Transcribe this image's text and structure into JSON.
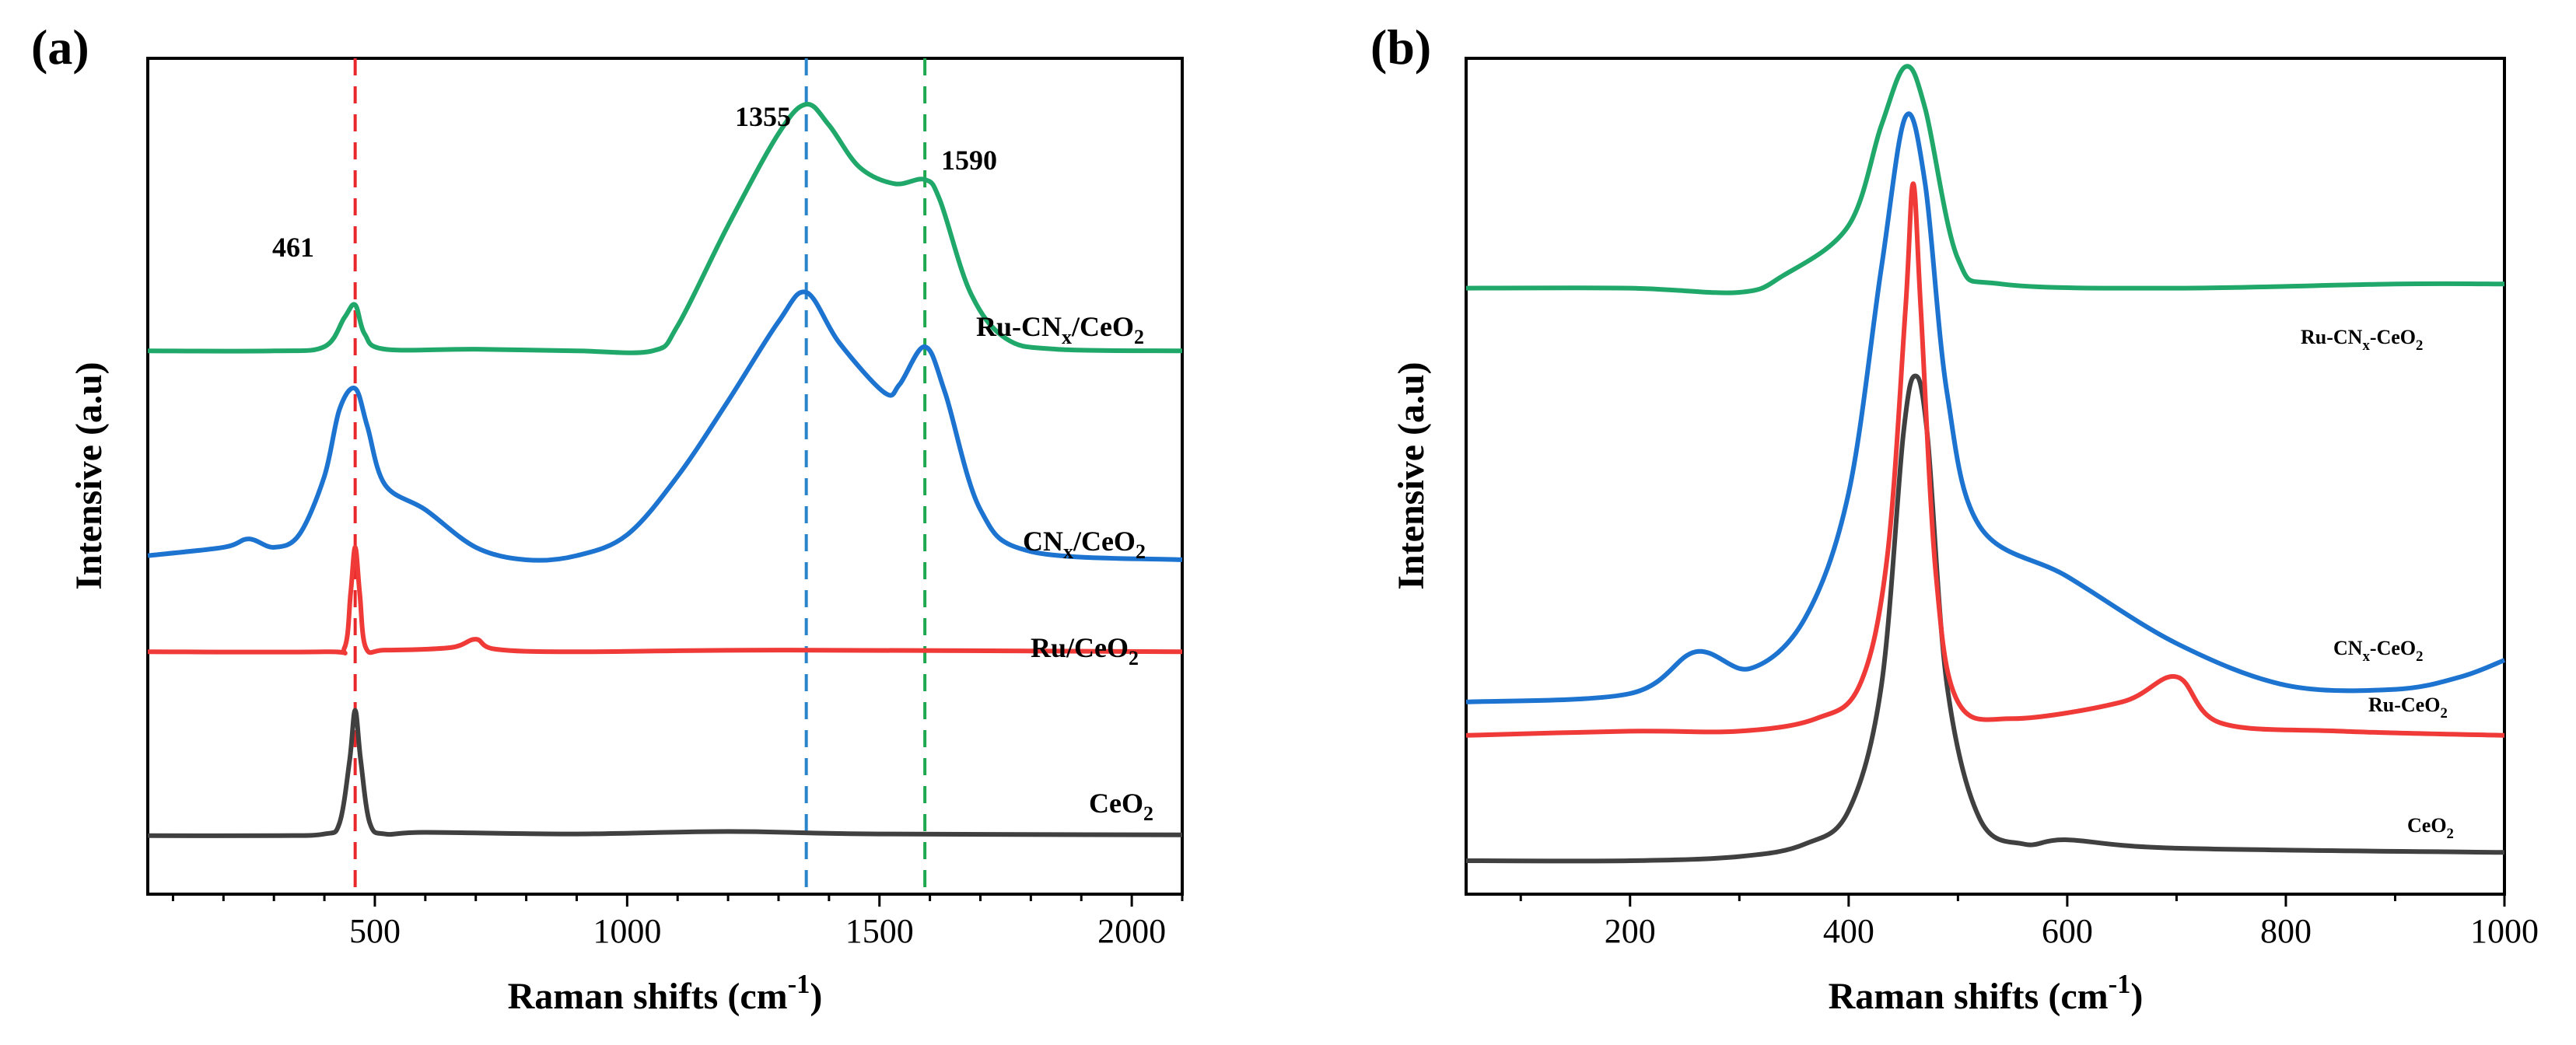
{
  "chart_data": [
    {
      "panel": "(a)",
      "type": "line",
      "xlabel": "Raman shifts (cm-1)",
      "xlabel_parts": [
        "Raman shifts (cm",
        "-1",
        ")"
      ],
      "ylabel": "Intensive (a.u)",
      "xlim": [
        50,
        2100
      ],
      "ylim": [
        0,
        10
      ],
      "xticks": [
        500,
        1000,
        1500,
        2000
      ],
      "xtick_labels": [
        "500",
        "1000",
        "1500",
        "2000"
      ],
      "reference_lines": [
        {
          "x": 461,
          "color": "#e8282a",
          "label": "461"
        },
        {
          "x": 1355,
          "color": "#2a84c9",
          "label": "1355"
        },
        {
          "x": 1590,
          "color": "#1fa84f",
          "label": "1590"
        }
      ],
      "series": [
        {
          "name": "CeO2",
          "label_parts": [
            "CeO",
            "2",
            ""
          ],
          "color": "#404040",
          "baseline": 0.7,
          "points": [
            [
              50,
              0.7
            ],
            [
              300,
              0.7
            ],
            [
              400,
              0.72
            ],
            [
              430,
              0.85
            ],
            [
              450,
              1.6
            ],
            [
              461,
              2.2
            ],
            [
              472,
              1.6
            ],
            [
              490,
              0.85
            ],
            [
              520,
              0.72
            ],
            [
              600,
              0.74
            ],
            [
              900,
              0.72
            ],
            [
              1200,
              0.75
            ],
            [
              1500,
              0.72
            ],
            [
              2100,
              0.71
            ]
          ]
        },
        {
          "name": "Ru/CeO2",
          "label_parts": [
            "Ru/CeO",
            "2",
            ""
          ],
          "color": "#ef3a38",
          "baseline": 2.9,
          "points": [
            [
              50,
              2.9
            ],
            [
              400,
              2.9
            ],
            [
              440,
              2.95
            ],
            [
              452,
              3.6
            ],
            [
              461,
              4.15
            ],
            [
              470,
              3.6
            ],
            [
              482,
              2.95
            ],
            [
              520,
              2.92
            ],
            [
              650,
              2.95
            ],
            [
              700,
              3.05
            ],
            [
              740,
              2.93
            ],
            [
              900,
              2.9
            ],
            [
              1300,
              2.92
            ],
            [
              2100,
              2.9
            ]
          ]
        },
        {
          "name": "CNx/CeO2",
          "label_parts": [
            "CN",
            "x",
            "/CeO",
            "2"
          ],
          "color": "#1c73d0",
          "baseline": 4.0,
          "points": [
            [
              50,
              4.05
            ],
            [
              200,
              4.15
            ],
            [
              250,
              4.25
            ],
            [
              300,
              4.15
            ],
            [
              350,
              4.3
            ],
            [
              400,
              5.0
            ],
            [
              430,
              5.8
            ],
            [
              461,
              6.05
            ],
            [
              485,
              5.6
            ],
            [
              520,
              4.9
            ],
            [
              600,
              4.6
            ],
            [
              700,
              4.15
            ],
            [
              800,
              4.0
            ],
            [
              900,
              4.05
            ],
            [
              1000,
              4.3
            ],
            [
              1100,
              5.0
            ],
            [
              1200,
              5.9
            ],
            [
              1300,
              6.85
            ],
            [
              1355,
              7.2
            ],
            [
              1420,
              6.6
            ],
            [
              1510,
              6.0
            ],
            [
              1540,
              6.1
            ],
            [
              1590,
              6.55
            ],
            [
              1630,
              6.0
            ],
            [
              1700,
              4.6
            ],
            [
              1800,
              4.1
            ],
            [
              2100,
              4.0
            ]
          ]
        },
        {
          "name": "Ru-CNx/CeO2",
          "label_parts": [
            "Ru-CN",
            "x",
            "/CeO",
            "2"
          ],
          "color": "#1fa86a",
          "baseline": 6.5,
          "points": [
            [
              50,
              6.5
            ],
            [
              300,
              6.5
            ],
            [
              400,
              6.55
            ],
            [
              440,
              6.9
            ],
            [
              461,
              7.05
            ],
            [
              480,
              6.7
            ],
            [
              520,
              6.52
            ],
            [
              700,
              6.52
            ],
            [
              900,
              6.5
            ],
            [
              1050,
              6.5
            ],
            [
              1100,
              6.8
            ],
            [
              1200,
              8.0
            ],
            [
              1300,
              9.1
            ],
            [
              1355,
              9.45
            ],
            [
              1400,
              9.2
            ],
            [
              1460,
              8.7
            ],
            [
              1530,
              8.5
            ],
            [
              1590,
              8.55
            ],
            [
              1620,
              8.3
            ],
            [
              1680,
              7.2
            ],
            [
              1750,
              6.65
            ],
            [
              1850,
              6.52
            ],
            [
              2100,
              6.5
            ]
          ]
        }
      ]
    },
    {
      "panel": "(b)",
      "type": "line",
      "xlabel": "Raman shifts (cm-1)",
      "xlabel_parts": [
        "Raman shifts (cm",
        "-1",
        ")"
      ],
      "ylabel": "Intensive (a.u)",
      "xlim": [
        50,
        1000
      ],
      "ylim": [
        0,
        10
      ],
      "xticks": [
        200,
        400,
        600,
        800,
        1000
      ],
      "xtick_labels": [
        "200",
        "400",
        "600",
        "800",
        "1000"
      ],
      "series": [
        {
          "name": "CeO2",
          "label_parts": [
            "CeO",
            "2",
            ""
          ],
          "color": "#404040",
          "points": [
            [
              50,
              0.4
            ],
            [
              200,
              0.4
            ],
            [
              300,
              0.45
            ],
            [
              360,
              0.6
            ],
            [
              400,
              1.0
            ],
            [
              430,
              2.5
            ],
            [
              450,
              5.5
            ],
            [
              461,
              6.2
            ],
            [
              472,
              5.5
            ],
            [
              490,
              2.5
            ],
            [
              520,
              0.9
            ],
            [
              560,
              0.6
            ],
            [
              600,
              0.65
            ],
            [
              700,
              0.55
            ],
            [
              1000,
              0.5
            ]
          ]
        },
        {
          "name": "Ru-CeO2",
          "label_parts": [
            "Ru-CeO",
            "2",
            ""
          ],
          "color": "#ef3a38",
          "points": [
            [
              50,
              1.9
            ],
            [
              200,
              1.95
            ],
            [
              300,
              1.95
            ],
            [
              370,
              2.1
            ],
            [
              410,
              2.5
            ],
            [
              435,
              4.0
            ],
            [
              452,
              7.0
            ],
            [
              459,
              8.5
            ],
            [
              466,
              7.0
            ],
            [
              480,
              3.8
            ],
            [
              500,
              2.3
            ],
            [
              550,
              2.1
            ],
            [
              650,
              2.3
            ],
            [
              700,
              2.6
            ],
            [
              740,
              2.05
            ],
            [
              850,
              1.95
            ],
            [
              1000,
              1.9
            ]
          ]
        },
        {
          "name": "CNx-CeO2",
          "label_parts": [
            "CN",
            "x",
            "-CeO",
            "2"
          ],
          "color": "#1c73d0",
          "points": [
            [
              50,
              2.3
            ],
            [
              200,
              2.4
            ],
            [
              260,
              2.9
            ],
            [
              310,
              2.7
            ],
            [
              360,
              3.3
            ],
            [
              400,
              4.8
            ],
            [
              430,
              7.5
            ],
            [
              452,
              9.3
            ],
            [
              470,
              8.5
            ],
            [
              490,
              6.0
            ],
            [
              520,
              4.4
            ],
            [
              600,
              3.8
            ],
            [
              700,
              3.0
            ],
            [
              800,
              2.5
            ],
            [
              900,
              2.45
            ],
            [
              960,
              2.6
            ],
            [
              1000,
              2.8
            ]
          ]
        },
        {
          "name": "Ru-CNx-CeO2",
          "label_parts": [
            "Ru-CN",
            "x",
            "-CeO",
            "2"
          ],
          "color": "#1fa86a",
          "points": [
            [
              50,
              7.25
            ],
            [
              200,
              7.25
            ],
            [
              300,
              7.2
            ],
            [
              340,
              7.4
            ],
            [
              400,
              8.0
            ],
            [
              430,
              9.2
            ],
            [
              452,
              9.9
            ],
            [
              470,
              9.4
            ],
            [
              500,
              7.6
            ],
            [
              540,
              7.3
            ],
            [
              700,
              7.25
            ],
            [
              900,
              7.3
            ],
            [
              1000,
              7.3
            ]
          ]
        }
      ]
    }
  ]
}
